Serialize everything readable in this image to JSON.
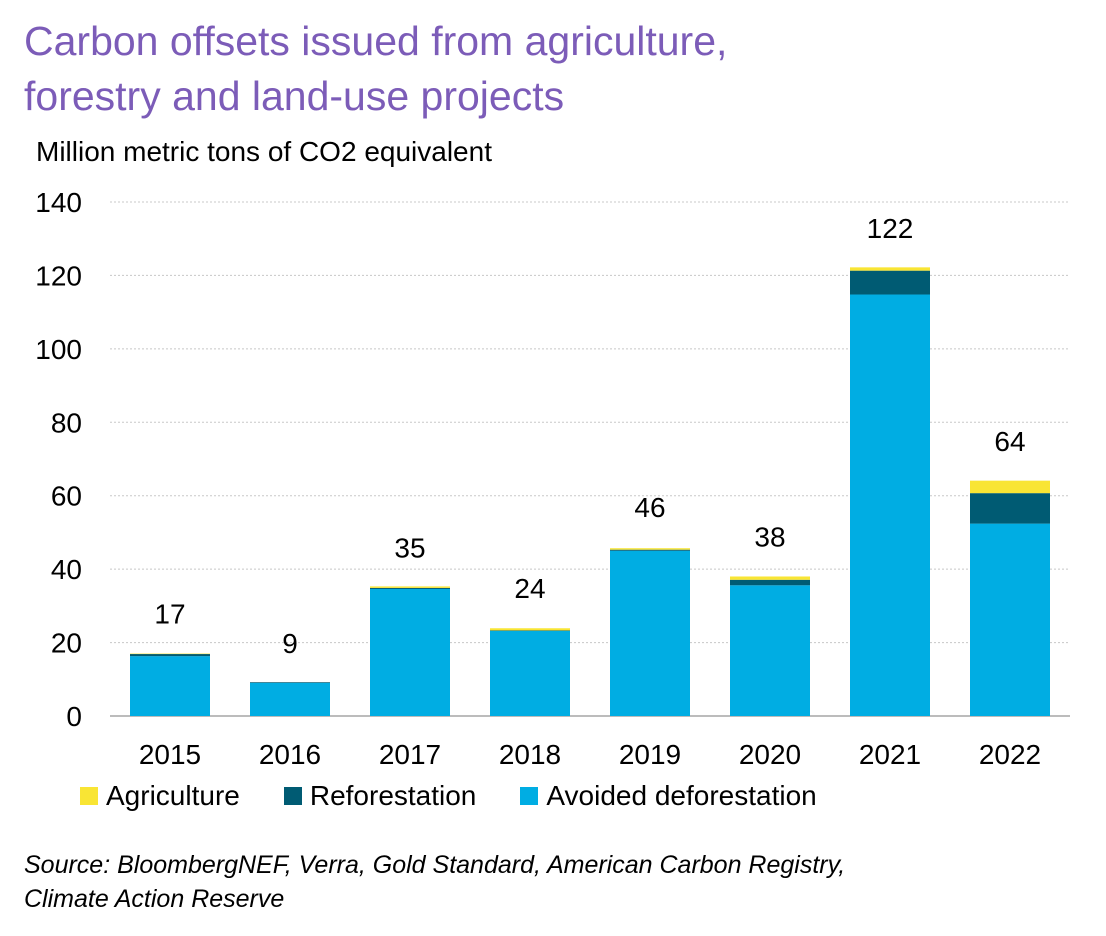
{
  "title_lines": [
    "Carbon offsets issued from agriculture,",
    "forestry and land-use projects"
  ],
  "unit_label": "Million metric tons of CO2 equivalent",
  "source_lines": [
    "Source: BloombergNEF, Verra, Gold Standard, American Carbon Registry,",
    "Climate Action Reserve"
  ],
  "colors": {
    "agriculture": "#f9e534",
    "reforestation": "#005b73",
    "avoided": "#00ade3",
    "grid": "#c8c8c8",
    "title": "#7c5cb8"
  },
  "chart_data": {
    "type": "bar",
    "stacked": true,
    "title": "Carbon offsets issued from agriculture, forestry and land-use projects",
    "ylabel": "Million metric tons of CO2 equivalent",
    "ylim": [
      0,
      140
    ],
    "yticks": [
      0,
      20,
      40,
      60,
      80,
      100,
      120,
      140
    ],
    "categories": [
      "2015",
      "2016",
      "2017",
      "2018",
      "2019",
      "2020",
      "2021",
      "2022"
    ],
    "series": [
      {
        "name": "Avoided deforestation",
        "color_key": "avoided",
        "values": [
          16.3,
          9.0,
          34.6,
          23.2,
          45.0,
          35.6,
          114.8,
          52.4
        ]
      },
      {
        "name": "Reforestation",
        "color_key": "reforestation",
        "values": [
          0.6,
          0.2,
          0.3,
          0.1,
          0.3,
          1.5,
          6.5,
          8.3
        ]
      },
      {
        "name": "Agriculture",
        "color_key": "agriculture",
        "values": [
          0.1,
          0.0,
          0.4,
          0.6,
          0.4,
          0.9,
          0.9,
          3.4
        ]
      }
    ],
    "totals": [
      17,
      9,
      35,
      24,
      46,
      38,
      122,
      64
    ],
    "total_labels": [
      "17",
      "9",
      "35",
      "24",
      "46",
      "38",
      "122",
      "64"
    ],
    "legend": [
      "Agriculture",
      "Reforestation",
      "Avoided deforestation"
    ],
    "legend_position": "bottom",
    "grid": true
  }
}
